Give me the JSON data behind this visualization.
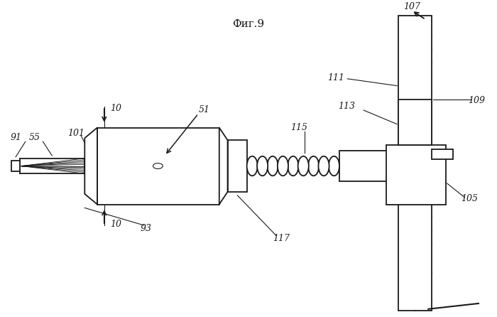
{
  "title": "Фиг.9",
  "bg": "#ffffff",
  "lc": "#1a1a1a",
  "fig_w": 7.0,
  "fig_h": 4.46,
  "dpi": 100
}
